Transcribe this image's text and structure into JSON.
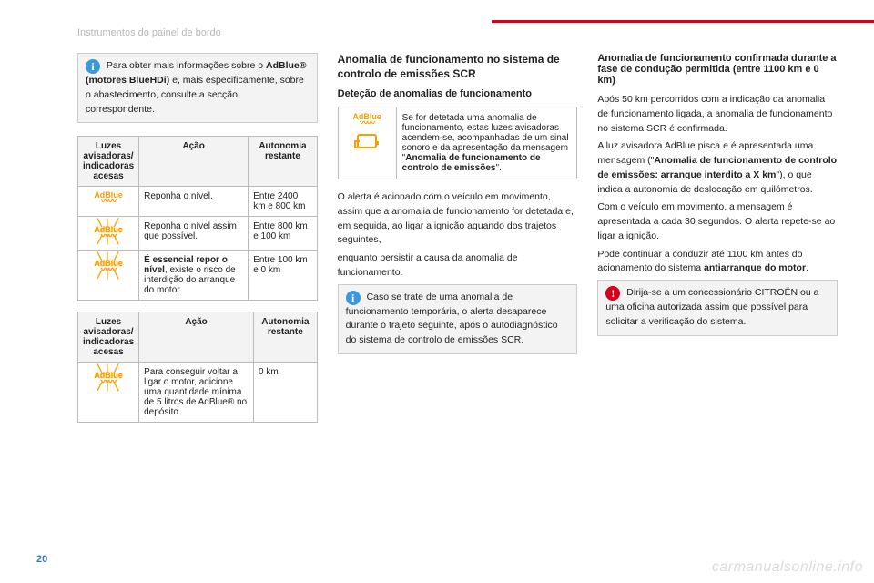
{
  "header": {
    "section_title": "Instrumentos do painel de bordo"
  },
  "page_number": "20",
  "watermark": "carmanualsonline.info",
  "callouts": {
    "info1": {
      "prefix": "Para obter mais informações sobre o ",
      "bold": "AdBlue® (motores BlueHDi)",
      "suffix": " e, mais especificamente, sobre o abastecimento, consulte a secção correspondente."
    },
    "info2": "Caso se trate de uma anomalia de funcionamento temporária, o alerta desaparece durante o trajeto seguinte, após o autodiagnóstico do sistema de controlo de emissões SCR.",
    "warn1": "Dirija-se a um concessionário CITROËN ou a uma oficina autorizada assim que possível para solicitar a verificação do sistema."
  },
  "table1": {
    "headers": [
      "Luzes avisadoras/ indicadoras acesas",
      "Ação",
      "Autonomia restante"
    ],
    "rows": [
      {
        "icon_variant": "solid",
        "action": "Reponha o nível.",
        "range": "Entre 2400 km e 800 km"
      },
      {
        "icon_variant": "glow",
        "action": "Reponha o nível assim que possível.",
        "range": "Entre 800 km e 100 km"
      },
      {
        "icon_variant": "glow",
        "action_bold": "É essencial repor o nível",
        "action_rest": ", existe o risco de interdição do arranque do motor.",
        "range": "Entre 100 km e 0 km"
      }
    ]
  },
  "table2": {
    "headers": [
      "Luzes avisadoras/ indicadoras acesas",
      "Ação",
      "Autonomia restante"
    ],
    "rows": [
      {
        "icon_variant": "glow",
        "action": "Para conseguir voltar a ligar o motor, adicione uma quantidade mínima de 5 litros de AdBlue® no depósito.",
        "range": "0 km"
      }
    ]
  },
  "headings": {
    "h4_anomaly": "Anomalia de funcionamento no sistema de controlo de emissões SCR",
    "h5_detection": "Deteção de anomalias de funcionamento",
    "h5_confirmed": "Anomalia de funcionamento confirmada durante a fase de condução permitida (entre 1100 km e 0 km)"
  },
  "detection_table": {
    "text_pre": "Se for detetada uma anomalia de funcionamento, estas luzes avisadoras acendem-se, acompanhadas de um sinal sonoro e da apresentação da mensagem \"",
    "text_bold": "Anomalia de funcionamento de controlo de emissões",
    "text_post": "\"."
  },
  "paragraphs": {
    "p_alert_triggered": "O alerta é acionado com o veículo em movimento, assim que a anomalia de funcionamento for detetada e, em seguida, ao ligar a ignição aquando dos trajetos seguintes,",
    "p_persist": "enquanto persistir a causa da anomalia de funcionamento.",
    "p_after50_a": "Após 50 km percorridos com a indicação da anomalia de funcionamento ligada, a anomalia de funcionamento no sistema SCR é confirmada.",
    "p_after50_b_pre": "A luz avisadora AdBlue pisca e é apresentada uma mensagem (\"",
    "p_after50_b_bold": "Anomalia de funcionamento de controlo de emissões: arranque interdito a X km",
    "p_after50_b_post": "\"), o que indica a autonomia de deslocação em quilómetros.",
    "p_moving": "Com o veículo em movimento, a mensagem é apresentada a cada 30 segundos. O alerta repete-se ao ligar a ignição.",
    "p_continue_pre": "Pode continuar a conduzir até 1100 km antes do acionamento do sistema ",
    "p_continue_bold": "antiarranque do motor",
    "p_continue_post": "."
  },
  "adblue_label": "AdBlue"
}
